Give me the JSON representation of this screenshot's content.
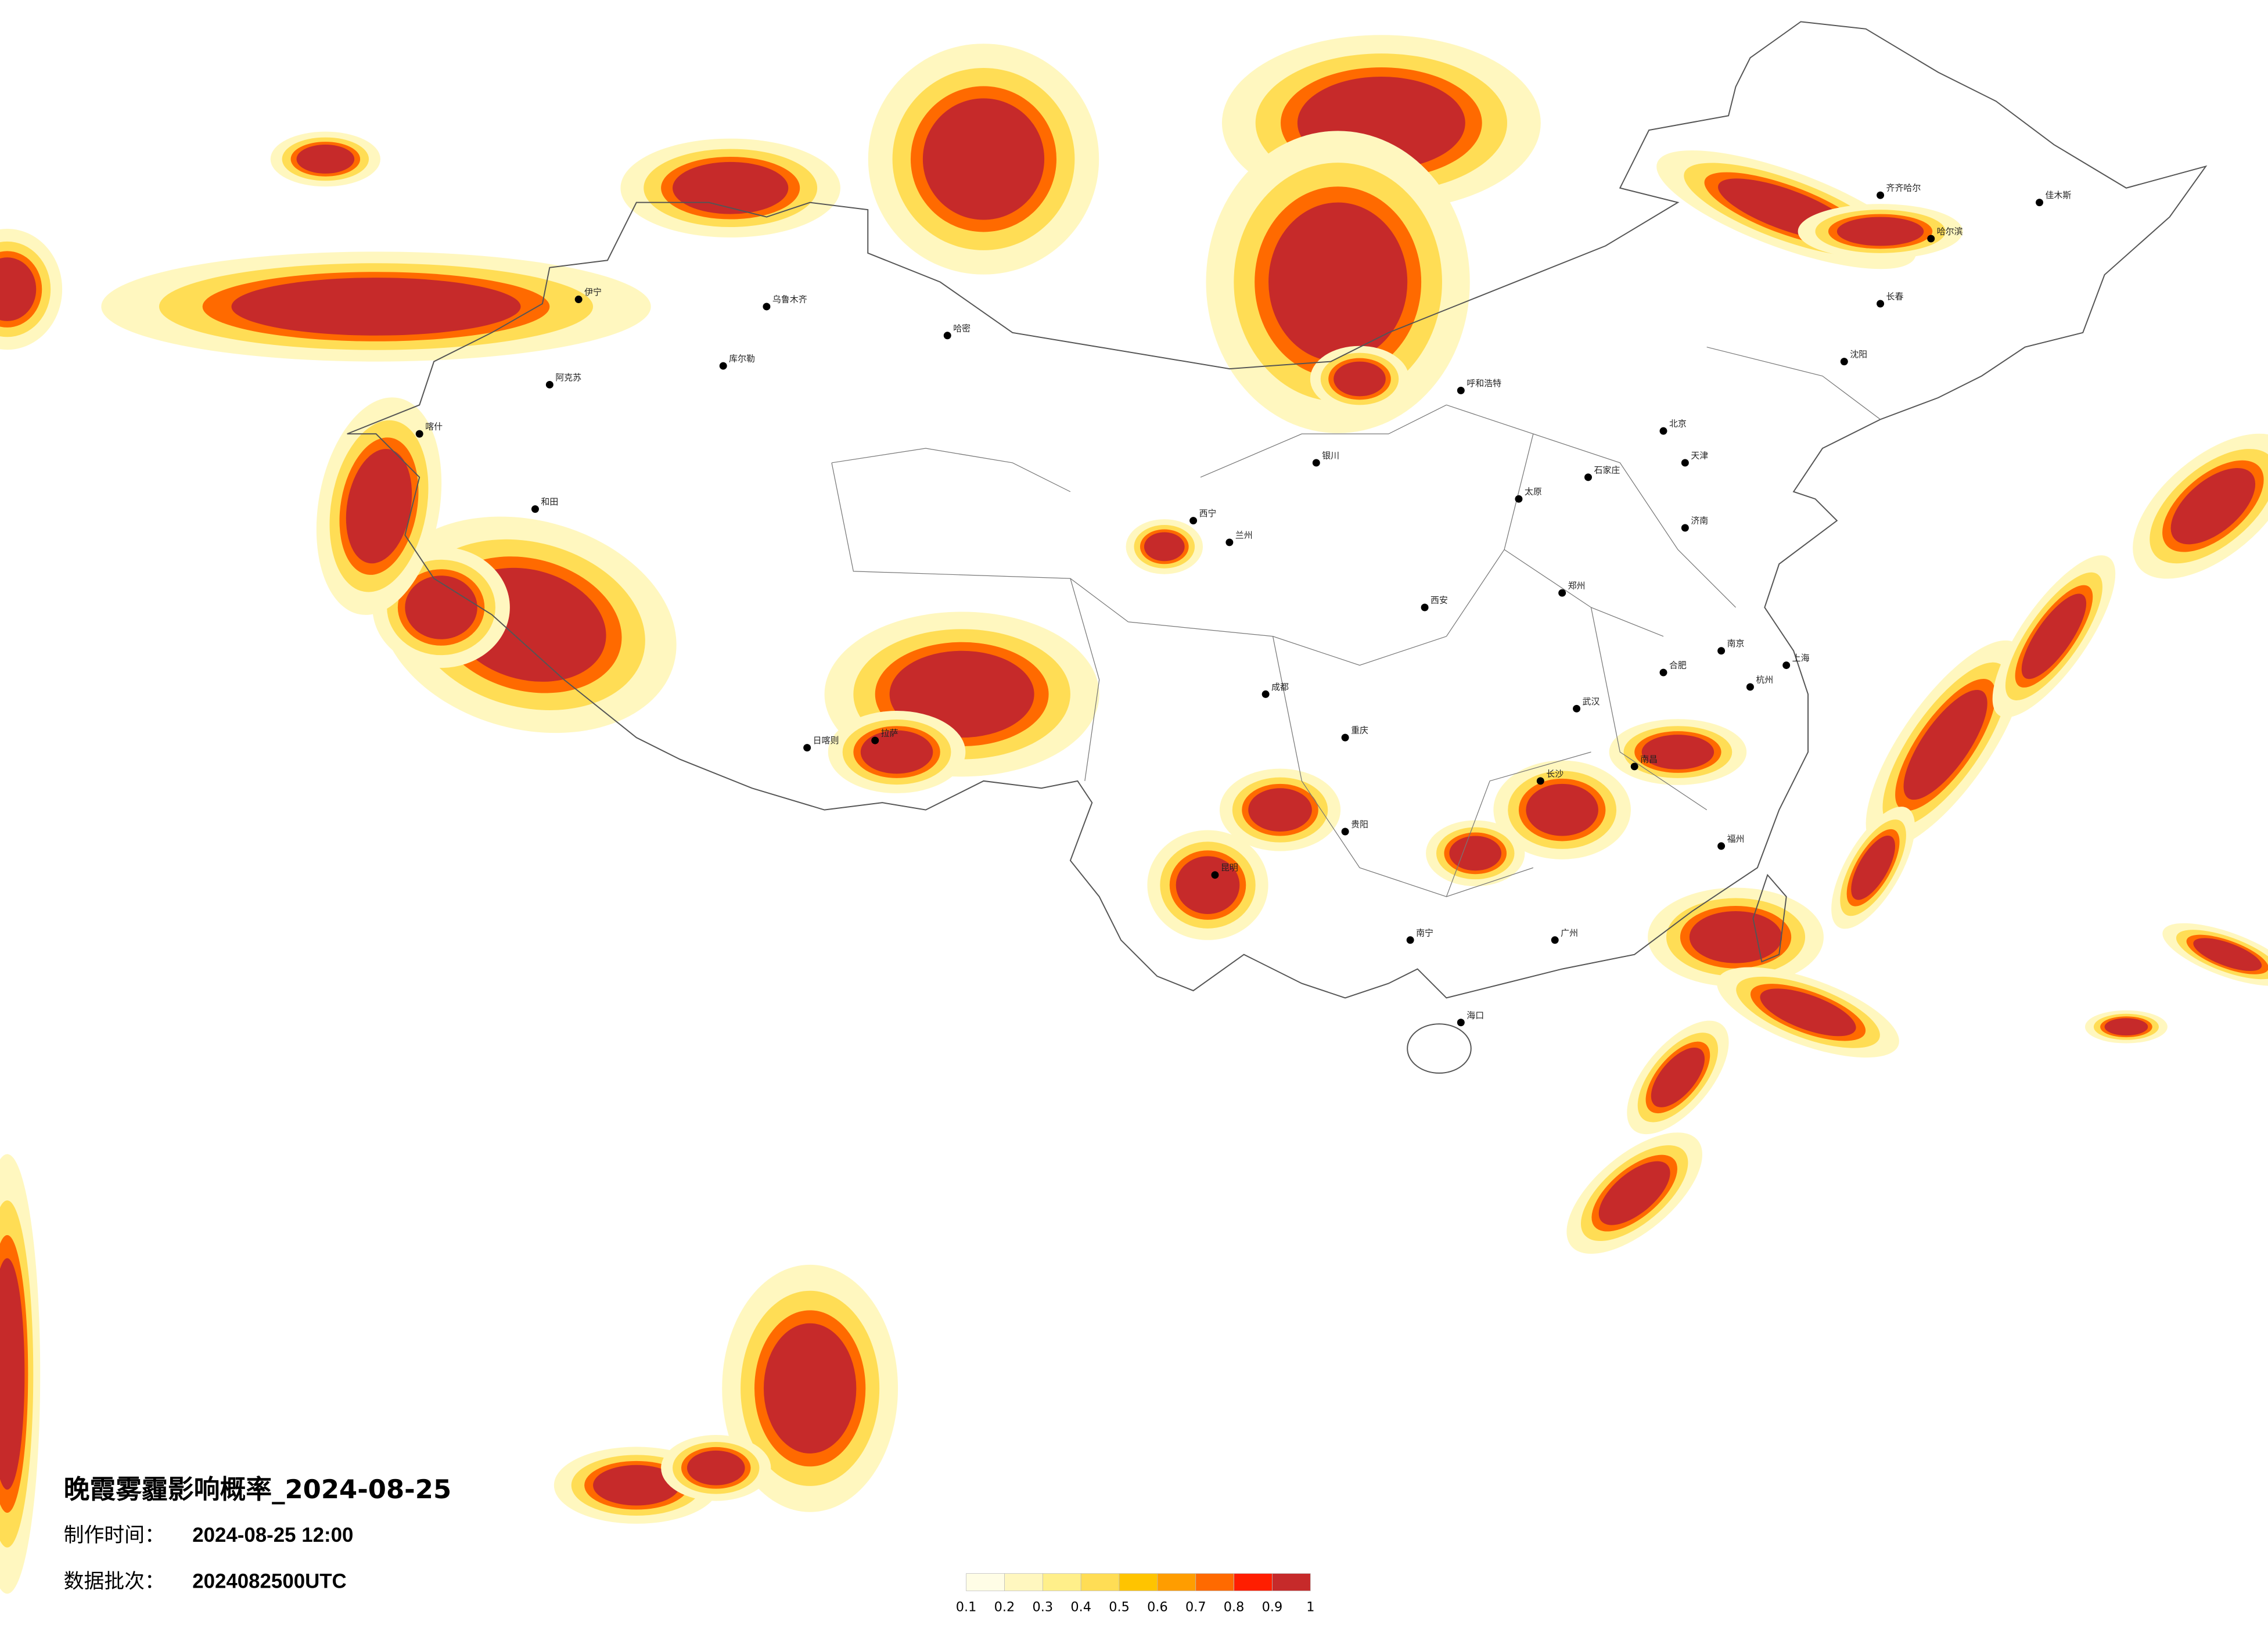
{
  "header": {
    "title": "晚霞雾霾影响概率_2024-08-25",
    "made_label": "制作时间：",
    "made_time": "2024-08-25 12:00",
    "batch_label": "数据批次：",
    "batch": "2024082500UTC"
  },
  "legend": {
    "ticks": [
      0.1,
      0.2,
      0.3,
      0.4,
      0.5,
      0.6,
      0.7,
      0.8,
      0.9,
      1
    ],
    "colors": [
      "#fffde6",
      "#fff7bf",
      "#ffef8a",
      "#ffdd55",
      "#ffc400",
      "#ff9d00",
      "#ff6a00",
      "#ff1e00",
      "#c62a2a"
    ]
  },
  "cities": [
    "伊宁",
    "乌鲁木齐",
    "哈密",
    "库尔勒",
    "阿克苏",
    "喀什",
    "和田",
    "拉萨",
    "日喀则",
    "西宁",
    "兰州",
    "银川",
    "呼和浩特",
    "北京",
    "天津",
    "石家庄",
    "太原",
    "济南",
    "郑州",
    "西安",
    "成都",
    "重庆",
    "贵阳",
    "昆明",
    "南宁",
    "广州",
    "海口",
    "长沙",
    "武汉",
    "南昌",
    "福州",
    "杭州",
    "上海",
    "南京",
    "合肥",
    "沈阳",
    "长春",
    "哈尔滨",
    "齐齐哈尔",
    "佳木斯"
  ]
}
